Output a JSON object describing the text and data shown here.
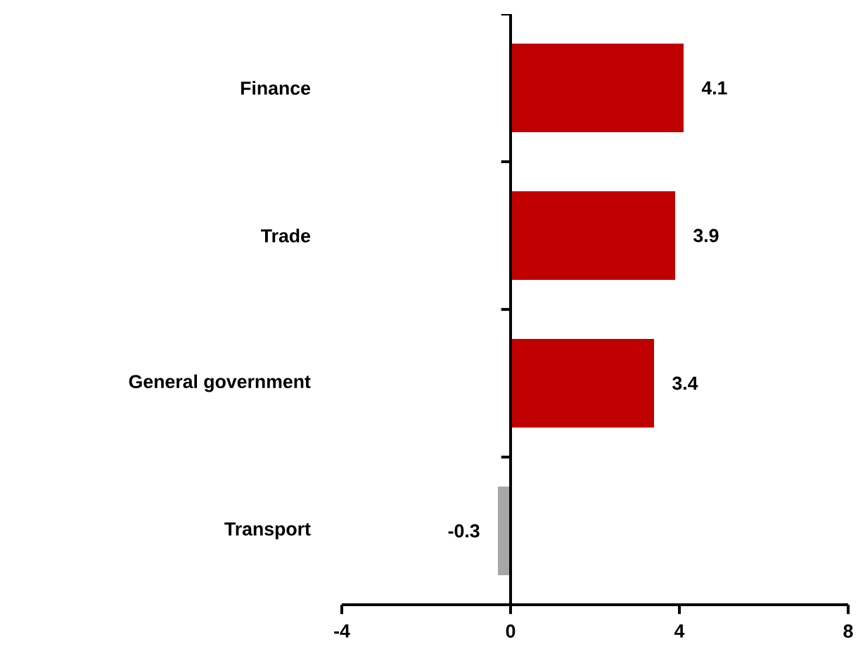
{
  "chart_data": {
    "type": "bar",
    "orientation": "horizontal",
    "categories": [
      "Finance",
      "Trade",
      "General government",
      "Transport"
    ],
    "values": [
      4.1,
      3.9,
      3.4,
      -0.3
    ],
    "colors": [
      "#c00000",
      "#c00000",
      "#c00000",
      "#a6a6a6"
    ],
    "xlim": [
      -4,
      8
    ],
    "xticks": [
      -4,
      0,
      4,
      8
    ],
    "data_labels": true
  }
}
